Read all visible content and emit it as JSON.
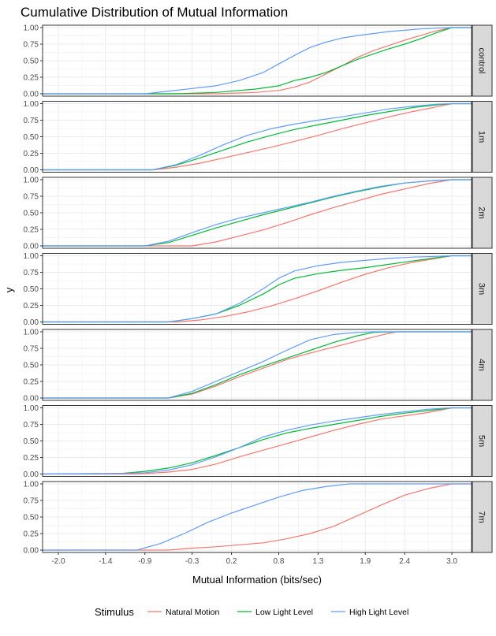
{
  "chart_data": {
    "type": "line",
    "title": "Cumulative Distribution of Mutual Information",
    "xlabel": "Mutual Information (bits/sec)",
    "ylabel": "y",
    "x_ticks": [
      "-2.0",
      "-1.4",
      "-0.9",
      "-0.3",
      "0.2",
      "0.8",
      "1.3",
      "1.9",
      "2.4",
      "3.0"
    ],
    "x_tick_values": [
      -2.0,
      -1.4,
      -0.9,
      -0.3,
      0.2,
      0.8,
      1.3,
      1.9,
      2.4,
      3.0
    ],
    "xlim": [
      -2.2,
      3.25
    ],
    "ylim": [
      0,
      1
    ],
    "y_ticks": [
      "0.00",
      "0.25",
      "0.50",
      "0.75",
      "1.00"
    ],
    "grid": true,
    "legend": {
      "title": "Stimulus",
      "position": "bottom",
      "entries": [
        {
          "label": "Natural Motion",
          "color": "#F8766D"
        },
        {
          "label": "Low Light Level",
          "color": "#00BA38"
        },
        {
          "label": "High Light Level",
          "color": "#619CFF"
        }
      ]
    },
    "panels": [
      {
        "strip": "control",
        "series": [
          {
            "label": "Natural Motion",
            "x": [
              -2.2,
              0.0,
              0.5,
              0.8,
              1.0,
              1.2,
              1.4,
              1.6,
              1.8,
              2.0,
              2.2,
              2.4,
              2.6,
              2.8,
              3.0,
              3.25
            ],
            "y": [
              0,
              0,
              0.02,
              0.05,
              0.1,
              0.18,
              0.3,
              0.42,
              0.55,
              0.65,
              0.73,
              0.81,
              0.88,
              0.95,
              1.0,
              1.0
            ]
          },
          {
            "label": "Low Light Level",
            "x": [
              -2.2,
              -0.5,
              0.0,
              0.5,
              0.8,
              1.0,
              1.2,
              1.4,
              1.6,
              1.8,
              2.0,
              2.2,
              2.4,
              2.6,
              2.8,
              3.0,
              3.25
            ],
            "y": [
              0,
              0,
              0.02,
              0.07,
              0.12,
              0.2,
              0.25,
              0.32,
              0.42,
              0.52,
              0.6,
              0.68,
              0.75,
              0.83,
              0.92,
              1.0,
              1.0
            ]
          },
          {
            "label": "High Light Level",
            "x": [
              -2.2,
              -0.9,
              -0.6,
              -0.3,
              0.0,
              0.3,
              0.6,
              0.8,
              1.0,
              1.2,
              1.4,
              1.6,
              1.8,
              2.0,
              2.2,
              2.4,
              2.6,
              2.8,
              3.0,
              3.25
            ],
            "y": [
              0,
              0,
              0.04,
              0.08,
              0.12,
              0.2,
              0.32,
              0.45,
              0.58,
              0.7,
              0.78,
              0.84,
              0.88,
              0.91,
              0.94,
              0.96,
              0.98,
              0.99,
              1.0,
              1.0
            ]
          }
        ]
      },
      {
        "strip": "1m",
        "series": [
          {
            "label": "Natural Motion",
            "x": [
              -2.2,
              -0.8,
              -0.5,
              -0.2,
              0.1,
              0.4,
              0.7,
              1.0,
              1.3,
              1.6,
              1.9,
              2.2,
              2.5,
              2.8,
              3.0,
              3.25
            ],
            "y": [
              0,
              0,
              0.04,
              0.1,
              0.18,
              0.26,
              0.34,
              0.43,
              0.52,
              0.62,
              0.71,
              0.8,
              0.88,
              0.95,
              1.0,
              1.0
            ]
          },
          {
            "label": "Low Light Level",
            "x": [
              -2.2,
              -0.8,
              -0.5,
              -0.2,
              0.1,
              0.4,
              0.7,
              1.0,
              1.3,
              1.6,
              1.9,
              2.2,
              2.5,
              2.8,
              3.0,
              3.25
            ],
            "y": [
              0,
              0,
              0.07,
              0.18,
              0.3,
              0.42,
              0.52,
              0.61,
              0.68,
              0.75,
              0.82,
              0.88,
              0.94,
              0.98,
              1.0,
              1.0
            ]
          },
          {
            "label": "High Light Level",
            "x": [
              -2.2,
              -0.8,
              -0.5,
              -0.2,
              0.1,
              0.4,
              0.7,
              1.0,
              1.3,
              1.6,
              1.9,
              2.2,
              2.5,
              2.8,
              3.0,
              3.25
            ],
            "y": [
              0,
              0,
              0.08,
              0.22,
              0.38,
              0.52,
              0.62,
              0.69,
              0.75,
              0.8,
              0.86,
              0.92,
              0.96,
              0.99,
              1.0,
              1.0
            ]
          }
        ]
      },
      {
        "strip": "2m",
        "series": [
          {
            "label": "Natural Motion",
            "x": [
              -2.2,
              -0.3,
              0.0,
              0.3,
              0.6,
              0.9,
              1.2,
              1.5,
              1.8,
              2.1,
              2.4,
              2.7,
              3.0,
              3.25
            ],
            "y": [
              0,
              0,
              0.06,
              0.15,
              0.24,
              0.35,
              0.47,
              0.58,
              0.68,
              0.78,
              0.86,
              0.94,
              1.0,
              1.0
            ]
          },
          {
            "label": "Low Light Level",
            "x": [
              -2.2,
              -0.9,
              -0.6,
              -0.3,
              0.0,
              0.3,
              0.6,
              0.9,
              1.2,
              1.5,
              1.8,
              2.1,
              2.4,
              2.7,
              3.0,
              3.25
            ],
            "y": [
              0,
              0,
              0.05,
              0.16,
              0.27,
              0.37,
              0.47,
              0.56,
              0.65,
              0.74,
              0.82,
              0.89,
              0.95,
              0.98,
              1.0,
              1.0
            ]
          },
          {
            "label": "High Light Level",
            "x": [
              -2.2,
              -0.9,
              -0.6,
              -0.3,
              0.0,
              0.3,
              0.6,
              0.9,
              1.2,
              1.5,
              1.8,
              2.1,
              2.4,
              2.7,
              3.0,
              3.25
            ],
            "y": [
              0,
              0,
              0.07,
              0.2,
              0.32,
              0.42,
              0.5,
              0.58,
              0.66,
              0.75,
              0.83,
              0.9,
              0.95,
              0.98,
              1.0,
              1.0
            ]
          }
        ]
      },
      {
        "strip": "3m",
        "series": [
          {
            "label": "Natural Motion",
            "x": [
              -2.2,
              -0.5,
              -0.2,
              0.1,
              0.4,
              0.7,
              1.0,
              1.3,
              1.6,
              1.9,
              2.2,
              2.5,
              2.8,
              3.0,
              3.25
            ],
            "y": [
              0,
              0,
              0.03,
              0.08,
              0.15,
              0.24,
              0.35,
              0.47,
              0.6,
              0.72,
              0.82,
              0.9,
              0.96,
              1.0,
              1.0
            ]
          },
          {
            "label": "Low Light Level",
            "x": [
              -2.2,
              -0.6,
              -0.3,
              0.0,
              0.3,
              0.6,
              0.8,
              1.0,
              1.3,
              1.6,
              1.9,
              2.2,
              2.5,
              2.8,
              3.0,
              3.25
            ],
            "y": [
              0,
              0,
              0.05,
              0.12,
              0.25,
              0.42,
              0.56,
              0.66,
              0.73,
              0.78,
              0.82,
              0.87,
              0.92,
              0.97,
              1.0,
              1.0
            ]
          },
          {
            "label": "High Light Level",
            "x": [
              -2.2,
              -0.6,
              -0.3,
              0.0,
              0.3,
              0.6,
              0.8,
              1.0,
              1.3,
              1.6,
              1.9,
              2.2,
              2.5,
              2.8,
              3.0,
              3.25
            ],
            "y": [
              0,
              0,
              0.05,
              0.12,
              0.28,
              0.5,
              0.66,
              0.77,
              0.85,
              0.9,
              0.93,
              0.96,
              0.98,
              0.99,
              1.0,
              1.0
            ]
          }
        ]
      },
      {
        "strip": "4m",
        "series": [
          {
            "label": "Natural Motion",
            "x": [
              -2.2,
              -0.6,
              -0.3,
              0.0,
              0.3,
              0.6,
              0.9,
              1.2,
              1.5,
              1.8,
              2.1,
              2.3,
              2.6,
              3.25
            ],
            "y": [
              0,
              0,
              0.06,
              0.18,
              0.32,
              0.45,
              0.58,
              0.68,
              0.77,
              0.86,
              0.95,
              1.0,
              1.0,
              1.0
            ]
          },
          {
            "label": "Low Light Level",
            "x": [
              -2.2,
              -0.6,
              -0.3,
              0.0,
              0.3,
              0.6,
              0.9,
              1.2,
              1.5,
              1.8,
              2.0,
              2.3,
              3.25
            ],
            "y": [
              0,
              0,
              0.07,
              0.2,
              0.35,
              0.48,
              0.6,
              0.72,
              0.84,
              0.94,
              0.99,
              1.0,
              1.0
            ]
          },
          {
            "label": "High Light Level",
            "x": [
              -2.2,
              -0.6,
              -0.3,
              0.0,
              0.3,
              0.6,
              0.9,
              1.2,
              1.5,
              1.8,
              2.0,
              3.25
            ],
            "y": [
              0,
              0,
              0.1,
              0.25,
              0.4,
              0.55,
              0.72,
              0.88,
              0.96,
              0.99,
              1.0,
              1.0
            ]
          }
        ]
      },
      {
        "strip": "5m",
        "series": [
          {
            "label": "Natural Motion",
            "x": [
              -2.2,
              -1.0,
              -0.6,
              -0.3,
              0.0,
              0.3,
              0.6,
              0.9,
              1.2,
              1.5,
              1.8,
              2.1,
              2.4,
              2.7,
              3.0,
              3.25
            ],
            "y": [
              0,
              0,
              0.03,
              0.07,
              0.15,
              0.26,
              0.36,
              0.46,
              0.56,
              0.66,
              0.75,
              0.83,
              0.88,
              0.93,
              1.0,
              1.0
            ]
          },
          {
            "label": "Low Light Level",
            "x": [
              -2.2,
              -1.2,
              -0.9,
              -0.6,
              -0.3,
              0.0,
              0.3,
              0.6,
              0.9,
              1.2,
              1.5,
              1.8,
              2.1,
              2.4,
              2.7,
              3.0,
              3.25
            ],
            "y": [
              0,
              0.01,
              0.04,
              0.09,
              0.17,
              0.28,
              0.4,
              0.52,
              0.62,
              0.69,
              0.75,
              0.81,
              0.87,
              0.92,
              0.96,
              1.0,
              1.0
            ]
          },
          {
            "label": "High Light Level",
            "x": [
              -2.2,
              -1.2,
              -0.9,
              -0.6,
              -0.3,
              0.0,
              0.3,
              0.6,
              0.9,
              1.2,
              1.5,
              1.8,
              2.1,
              2.4,
              2.7,
              3.0,
              3.25
            ],
            "y": [
              0,
              0.01,
              0.02,
              0.06,
              0.14,
              0.26,
              0.4,
              0.56,
              0.66,
              0.74,
              0.8,
              0.85,
              0.9,
              0.94,
              0.98,
              1.0,
              1.0
            ]
          }
        ]
      },
      {
        "strip": "7m",
        "series": [
          {
            "label": "Natural Motion",
            "x": [
              -2.2,
              -0.6,
              -0.3,
              0.0,
              0.3,
              0.6,
              0.9,
              1.2,
              1.5,
              1.8,
              2.1,
              2.4,
              2.7,
              3.0,
              3.25
            ],
            "y": [
              0,
              0,
              0.03,
              0.05,
              0.08,
              0.11,
              0.17,
              0.25,
              0.36,
              0.52,
              0.68,
              0.83,
              0.93,
              1.0,
              1.0
            ]
          },
          {
            "label": "High Light Level",
            "x": [
              -2.2,
              -1.0,
              -0.7,
              -0.4,
              -0.1,
              0.2,
              0.5,
              0.8,
              1.1,
              1.4,
              1.7,
              2.0,
              3.25
            ],
            "y": [
              0,
              0,
              0.1,
              0.25,
              0.42,
              0.56,
              0.68,
              0.8,
              0.9,
              0.96,
              1.0,
              1.0,
              1.0
            ]
          }
        ]
      }
    ]
  }
}
